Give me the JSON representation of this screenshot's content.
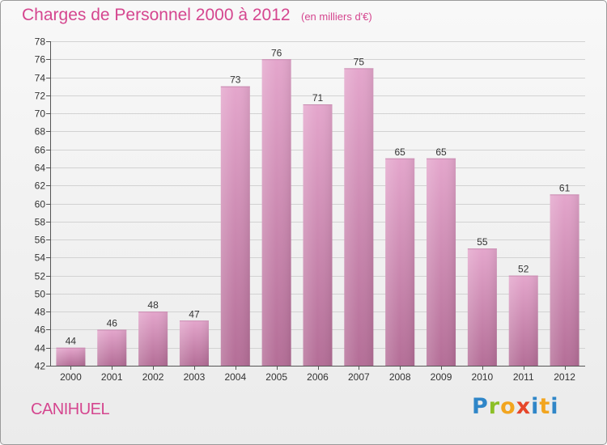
{
  "header": {
    "title": "Charges de Personnel 2000 à 2012",
    "subtitle": "(en milliers d'€)"
  },
  "footer": {
    "commune": "CANIHUEL",
    "logo": "Proxiti"
  },
  "colors": {
    "bar_top": "#e4a6cc",
    "bar_bottom": "#b46e97",
    "text_accent": "#d5468f"
  },
  "chart_data": {
    "type": "bar",
    "title": "Charges de Personnel 2000 à 2012",
    "subtitle": "(en milliers d'€)",
    "categories": [
      "2000",
      "2001",
      "2002",
      "2003",
      "2004",
      "2005",
      "2006",
      "2007",
      "2008",
      "2009",
      "2010",
      "2011",
      "2012"
    ],
    "values": [
      44,
      46,
      48,
      47,
      73,
      76,
      71,
      75,
      65,
      65,
      55,
      52,
      61
    ],
    "ylim": [
      42,
      78
    ],
    "yticks": [
      42,
      44,
      46,
      48,
      50,
      52,
      54,
      56,
      58,
      60,
      62,
      64,
      66,
      68,
      70,
      72,
      74,
      76,
      78
    ],
    "grid": true,
    "data_labels": true
  }
}
